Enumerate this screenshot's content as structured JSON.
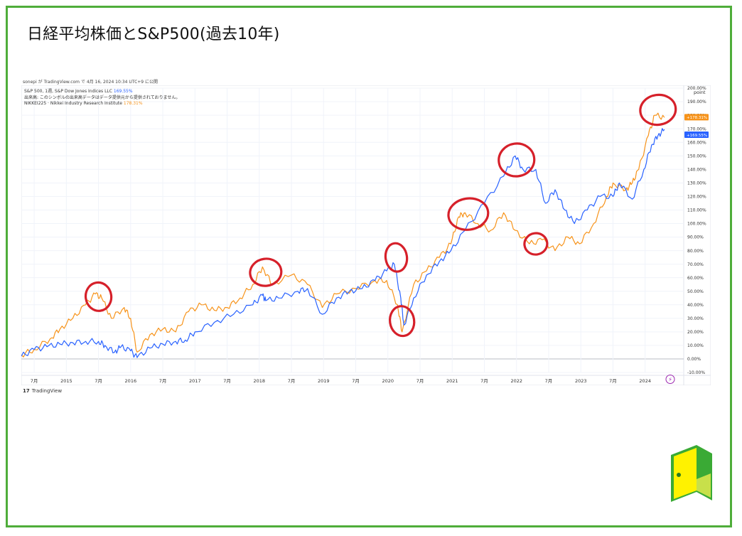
{
  "title": "日経平均株価とS&P500(過去10年)",
  "attribution": "sonepi が TradingView.com で 4月 16, 2024 10:34 UTC+9 に公開",
  "legend": {
    "line1_label": "S&P 500, 1週, S&P Dow Jones Indices LLC",
    "line1_value": "169.55%",
    "line2": "出来高: このシンボルの出来高データはデータ提供元から提供されておりません。",
    "line3_label": "NIKKEI225 · Nikkei Industry Research Institute",
    "line3_value": "178.31%"
  },
  "footer_logo": "TradingView",
  "logo_glyph": "17",
  "colors": {
    "frame": "#4fad3a",
    "sp500": "#2962ff",
    "nikkei": "#f7931a",
    "annotation": "#d6202a"
  },
  "chart_data": {
    "type": "line",
    "yunit": "point",
    "ylim": [
      -10,
      200
    ],
    "yticks": [
      "200.00%",
      "190.00%",
      "180.00%",
      "170.00%",
      "160.00%",
      "150.00%",
      "140.00%",
      "130.00%",
      "120.00%",
      "110.00%",
      "100.00%",
      "90.00%",
      "80.00%",
      "70.00%",
      "60.00%",
      "50.00%",
      "40.00%",
      "30.00%",
      "20.00%",
      "10.00%",
      "0.00%",
      "-10.00%"
    ],
    "xticks": [
      "7月",
      "2015",
      "7月",
      "2016",
      "7月",
      "2017",
      "7月",
      "2018",
      "7月",
      "2019",
      "7月",
      "2020",
      "7月",
      "2021",
      "7月",
      "2022",
      "7月",
      "2023",
      "7月",
      "2024"
    ],
    "grid": true,
    "series": [
      {
        "name": "S&P 500",
        "last_label": "+169.55%",
        "x": [
          2014.3,
          2014.5,
          2014.7,
          2014.9,
          2015.1,
          2015.3,
          2015.5,
          2015.6,
          2015.75,
          2015.85,
          2016.0,
          2016.1,
          2016.3,
          2016.5,
          2016.7,
          2016.85,
          2017.0,
          2017.3,
          2017.6,
          2017.9,
          2018.05,
          2018.1,
          2018.3,
          2018.6,
          2018.75,
          2018.98,
          2019.2,
          2019.4,
          2019.6,
          2019.8,
          2019.98,
          2020.1,
          2020.2,
          2020.25,
          2020.4,
          2020.6,
          2020.8,
          2020.98,
          2021.2,
          2021.5,
          2021.8,
          2021.98,
          2022.1,
          2022.3,
          2022.45,
          2022.6,
          2022.75,
          2022.9,
          2023.1,
          2023.3,
          2023.5,
          2023.6,
          2023.8,
          2023.98,
          2024.1,
          2024.2,
          2024.3
        ],
        "values": [
          2,
          7,
          9,
          11,
          12,
          13,
          13,
          10,
          5,
          9,
          6,
          1,
          8,
          11,
          13,
          14,
          20,
          27,
          33,
          40,
          47,
          43,
          45,
          50,
          52,
          33,
          45,
          50,
          52,
          58,
          65,
          70,
          45,
          25,
          45,
          62,
          72,
          80,
          95,
          115,
          135,
          150,
          140,
          140,
          115,
          125,
          110,
          100,
          110,
          120,
          120,
          130,
          118,
          140,
          158,
          165,
          169.55
        ]
      },
      {
        "name": "NIKKEI225",
        "last_label": "+178.31%",
        "x": [
          2014.3,
          2014.5,
          2014.75,
          2014.9,
          2015.1,
          2015.3,
          2015.45,
          2015.55,
          2015.7,
          2015.9,
          2016.0,
          2016.1,
          2016.3,
          2016.5,
          2016.7,
          2016.9,
          2017.1,
          2017.3,
          2017.5,
          2017.7,
          2017.9,
          2018.05,
          2018.2,
          2018.5,
          2018.75,
          2018.98,
          2019.2,
          2019.5,
          2019.8,
          2019.98,
          2020.15,
          2020.22,
          2020.4,
          2020.6,
          2020.8,
          2020.98,
          2021.1,
          2021.2,
          2021.4,
          2021.6,
          2021.8,
          2021.98,
          2022.2,
          2022.4,
          2022.6,
          2022.8,
          2022.98,
          2023.2,
          2023.4,
          2023.5,
          2023.7,
          2023.8,
          2023.9,
          2024.05,
          2024.15,
          2024.3
        ],
        "values": [
          3,
          7,
          15,
          22,
          30,
          40,
          48,
          45,
          30,
          38,
          30,
          5,
          18,
          22,
          20,
          35,
          40,
          36,
          38,
          45,
          55,
          68,
          55,
          62,
          55,
          38,
          48,
          52,
          58,
          58,
          40,
          20,
          55,
          65,
          75,
          85,
          105,
          108,
          100,
          95,
          108,
          95,
          85,
          88,
          80,
          90,
          85,
          100,
          120,
          130,
          125,
          130,
          140,
          165,
          180,
          178.31
        ]
      }
    ],
    "annotations": [
      "2015-peak",
      "2018-peak",
      "2020-top",
      "2020-crash",
      "2021-peak",
      "2021-top",
      "2022-low",
      "2024-peak"
    ]
  }
}
